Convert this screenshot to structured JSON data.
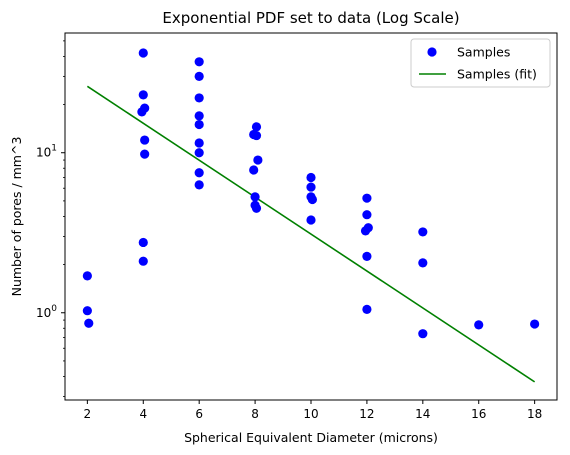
{
  "chart_data": {
    "type": "scatter",
    "title": "Exponential PDF set to data (Log Scale)",
    "xlabel": "Spherical Equivalent Diameter (microns)",
    "ylabel": "Number of pores / mm^3",
    "xlim": [
      1.2,
      18.8
    ],
    "ylim": [
      0.285,
      56
    ],
    "yscale": "log",
    "grid": false,
    "legend_position": "top-right",
    "x_ticks": [
      2,
      4,
      6,
      8,
      10,
      12,
      14,
      16,
      18
    ],
    "x_tick_labels": [
      "2",
      "4",
      "6",
      "8",
      "10",
      "12",
      "14",
      "16",
      "18"
    ],
    "y_ticks": [
      1,
      10
    ],
    "y_tick_labels": [
      "10⁰",
      "10¹"
    ],
    "y_tick_label_base": "10",
    "y_tick_label_exponents": [
      "0",
      "1"
    ],
    "series": [
      {
        "name": "Samples",
        "kind": "scatter",
        "color": "#0000ff",
        "points": [
          [
            2.0,
            1.7
          ],
          [
            2.0,
            1.03
          ],
          [
            2.05,
            0.86
          ],
          [
            4.0,
            42.0
          ],
          [
            4.0,
            23.0
          ],
          [
            4.05,
            19.0
          ],
          [
            3.95,
            18.0
          ],
          [
            4.05,
            12.0
          ],
          [
            4.05,
            9.8
          ],
          [
            4.0,
            2.75
          ],
          [
            4.0,
            2.1
          ],
          [
            6.0,
            37.0
          ],
          [
            6.0,
            30.0
          ],
          [
            6.0,
            22.0
          ],
          [
            6.0,
            17.0
          ],
          [
            6.0,
            15.0
          ],
          [
            6.0,
            11.5
          ],
          [
            6.0,
            10.0
          ],
          [
            6.0,
            7.5
          ],
          [
            6.0,
            6.3
          ],
          [
            8.05,
            14.5
          ],
          [
            7.95,
            13.0
          ],
          [
            8.05,
            12.8
          ],
          [
            8.1,
            9.0
          ],
          [
            7.95,
            7.8
          ],
          [
            8.0,
            5.3
          ],
          [
            8.0,
            4.7
          ],
          [
            8.05,
            4.5
          ],
          [
            10.0,
            7.0
          ],
          [
            10.0,
            6.1
          ],
          [
            10.0,
            5.3
          ],
          [
            10.05,
            5.1
          ],
          [
            10.0,
            3.8
          ],
          [
            12.0,
            5.2
          ],
          [
            12.0,
            4.1
          ],
          [
            12.05,
            3.4
          ],
          [
            11.95,
            3.25
          ],
          [
            12.0,
            2.25
          ],
          [
            12.0,
            1.05
          ],
          [
            14.0,
            3.2
          ],
          [
            14.0,
            2.05
          ],
          [
            14.0,
            0.74
          ],
          [
            16.0,
            0.84
          ],
          [
            18.0,
            0.85
          ]
        ]
      },
      {
        "name": "Samples (fit)",
        "kind": "line",
        "color": "#008000",
        "points": [
          [
            2,
            26
          ],
          [
            18,
            0.37
          ]
        ]
      }
    ]
  }
}
